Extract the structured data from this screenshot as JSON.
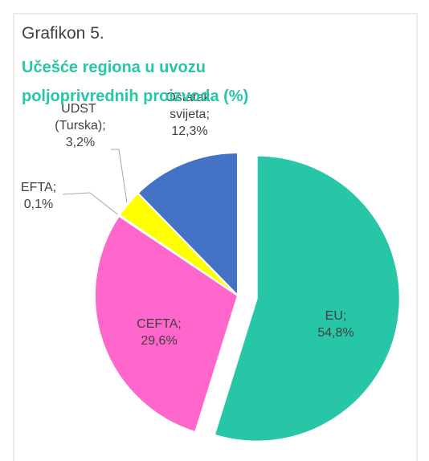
{
  "chart_data": {
    "type": "pie",
    "title": "Grafikon 5.",
    "subtitle": "Učešće regiona u uvozu poljoprivrednih proizvoda (%)",
    "categories": [
      "EU;",
      "CEFTA;",
      "EFTA;",
      "UDST (Turska);",
      "Ostatak svijeta;"
    ],
    "values": [
      54.8,
      29.6,
      0.1,
      3.2,
      12.3
    ],
    "value_labels": [
      "54,8%",
      "29,6%",
      "0,1%",
      "3,2%",
      "12,3%"
    ],
    "colors": [
      "#26c6a6",
      "#ff66cc",
      "#a5a5a5",
      "#ffff00",
      "#4472c4"
    ]
  }
}
